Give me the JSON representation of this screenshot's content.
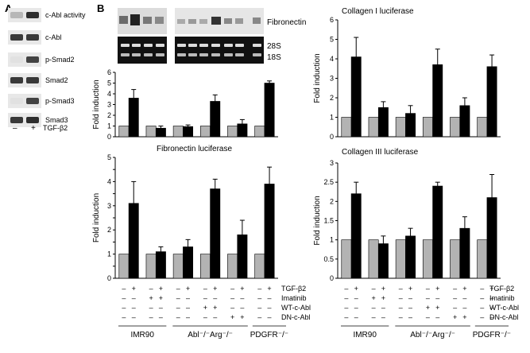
{
  "panel_a": {
    "label": "A",
    "rows": [
      "c-Abl activity",
      "c-Abl",
      "p-Smad2",
      "Smad2",
      "p-Smad3",
      "Smad3"
    ],
    "lane_signs": [
      "–",
      "+"
    ],
    "treatment": "TGF-β2"
  },
  "panel_b": {
    "label": "B",
    "blot_label": "Fibronectin",
    "rrna_labels": [
      "28S",
      "18S"
    ]
  },
  "conditions": {
    "rows": [
      {
        "label": "TGF-β2",
        "signs": [
          "–",
          "+",
          "–",
          "+",
          "–",
          "+",
          "–",
          "+",
          "–",
          "+",
          "–",
          "+"
        ]
      },
      {
        "label": "Imatinib",
        "signs": [
          "–",
          "–",
          "+",
          "+",
          "–",
          "–",
          "–",
          "–",
          "–",
          "–",
          "–",
          "–"
        ]
      },
      {
        "label": "WT-c-Abl",
        "signs": [
          "–",
          "–",
          "–",
          "–",
          "–",
          "–",
          "+",
          "+",
          "–",
          "–",
          "–",
          "–"
        ]
      },
      {
        "label": "DN-c-Abl",
        "signs": [
          "–",
          "–",
          "–",
          "–",
          "–",
          "–",
          "–",
          "–",
          "+",
          "+",
          "–",
          "–"
        ]
      }
    ],
    "groups": [
      "IMR90",
      "Abl⁻/⁻Arg⁻/⁻",
      "PDGFR⁻/⁻"
    ]
  },
  "colors": {
    "control_bar": "#b3b3b3",
    "tgf_bar": "#000000"
  },
  "chart_data": [
    {
      "id": "fibronectin-blot-quant",
      "type": "bar",
      "title": "",
      "ylabel": "Fold induction",
      "ylim": [
        0,
        6
      ],
      "yticks": [
        0,
        1,
        2,
        3,
        4,
        5,
        6
      ],
      "values": [
        1,
        3.6,
        1,
        0.8,
        1,
        0.95,
        1,
        3.3,
        1,
        1.2,
        1,
        5.0
      ],
      "errors": [
        0,
        0.8,
        0,
        0.2,
        0,
        0.15,
        0,
        0.6,
        0,
        0.4,
        0,
        0.2
      ]
    },
    {
      "id": "collagen-i-luciferase",
      "type": "bar",
      "title": "Collagen I luciferase",
      "ylabel": "Fold induction",
      "ylim": [
        0,
        6
      ],
      "yticks": [
        0,
        1,
        2,
        3,
        4,
        5,
        6
      ],
      "values": [
        1,
        4.1,
        1,
        1.5,
        1,
        1.2,
        1,
        3.7,
        1,
        1.6,
        1,
        3.6
      ],
      "errors": [
        0,
        1.0,
        0,
        0.3,
        0,
        0.4,
        0,
        0.8,
        0,
        0.4,
        0,
        0.6
      ]
    },
    {
      "id": "fibronectin-luciferase",
      "type": "bar",
      "title": "Fibronectin luciferase",
      "ylabel": "Fold induction",
      "ylim": [
        0,
        5
      ],
      "yticks": [
        0,
        0.5,
        1,
        1.5,
        2,
        2.5,
        3,
        3.5,
        4,
        4.5,
        5
      ],
      "yticklabels": [
        "0",
        "",
        "1",
        "",
        "2",
        "",
        "3",
        "",
        "4",
        "",
        "5"
      ],
      "values": [
        1,
        3.1,
        1,
        1.1,
        1,
        1.3,
        1,
        3.7,
        1,
        1.8,
        1,
        3.9
      ],
      "errors": [
        0,
        0.9,
        0,
        0.2,
        0,
        0.3,
        0,
        0.4,
        0,
        0.6,
        0,
        0.7
      ]
    },
    {
      "id": "collagen-iii-luciferase",
      "type": "bar",
      "title": "Collagen III luciferase",
      "ylabel": "Fold induction",
      "ylim": [
        0,
        3
      ],
      "yticks": [
        0,
        0.5,
        1,
        1.5,
        2,
        2.5,
        3
      ],
      "yticklabels": [
        "0",
        "0.5",
        "1",
        "1.5",
        "2",
        "2.5",
        "3"
      ],
      "values": [
        1,
        2.2,
        1,
        0.9,
        1,
        1.1,
        1,
        2.4,
        1,
        1.3,
        1,
        2.1
      ],
      "errors": [
        0,
        0.3,
        0,
        0.2,
        0,
        0.2,
        0,
        0.1,
        0,
        0.3,
        0,
        0.6
      ]
    }
  ]
}
